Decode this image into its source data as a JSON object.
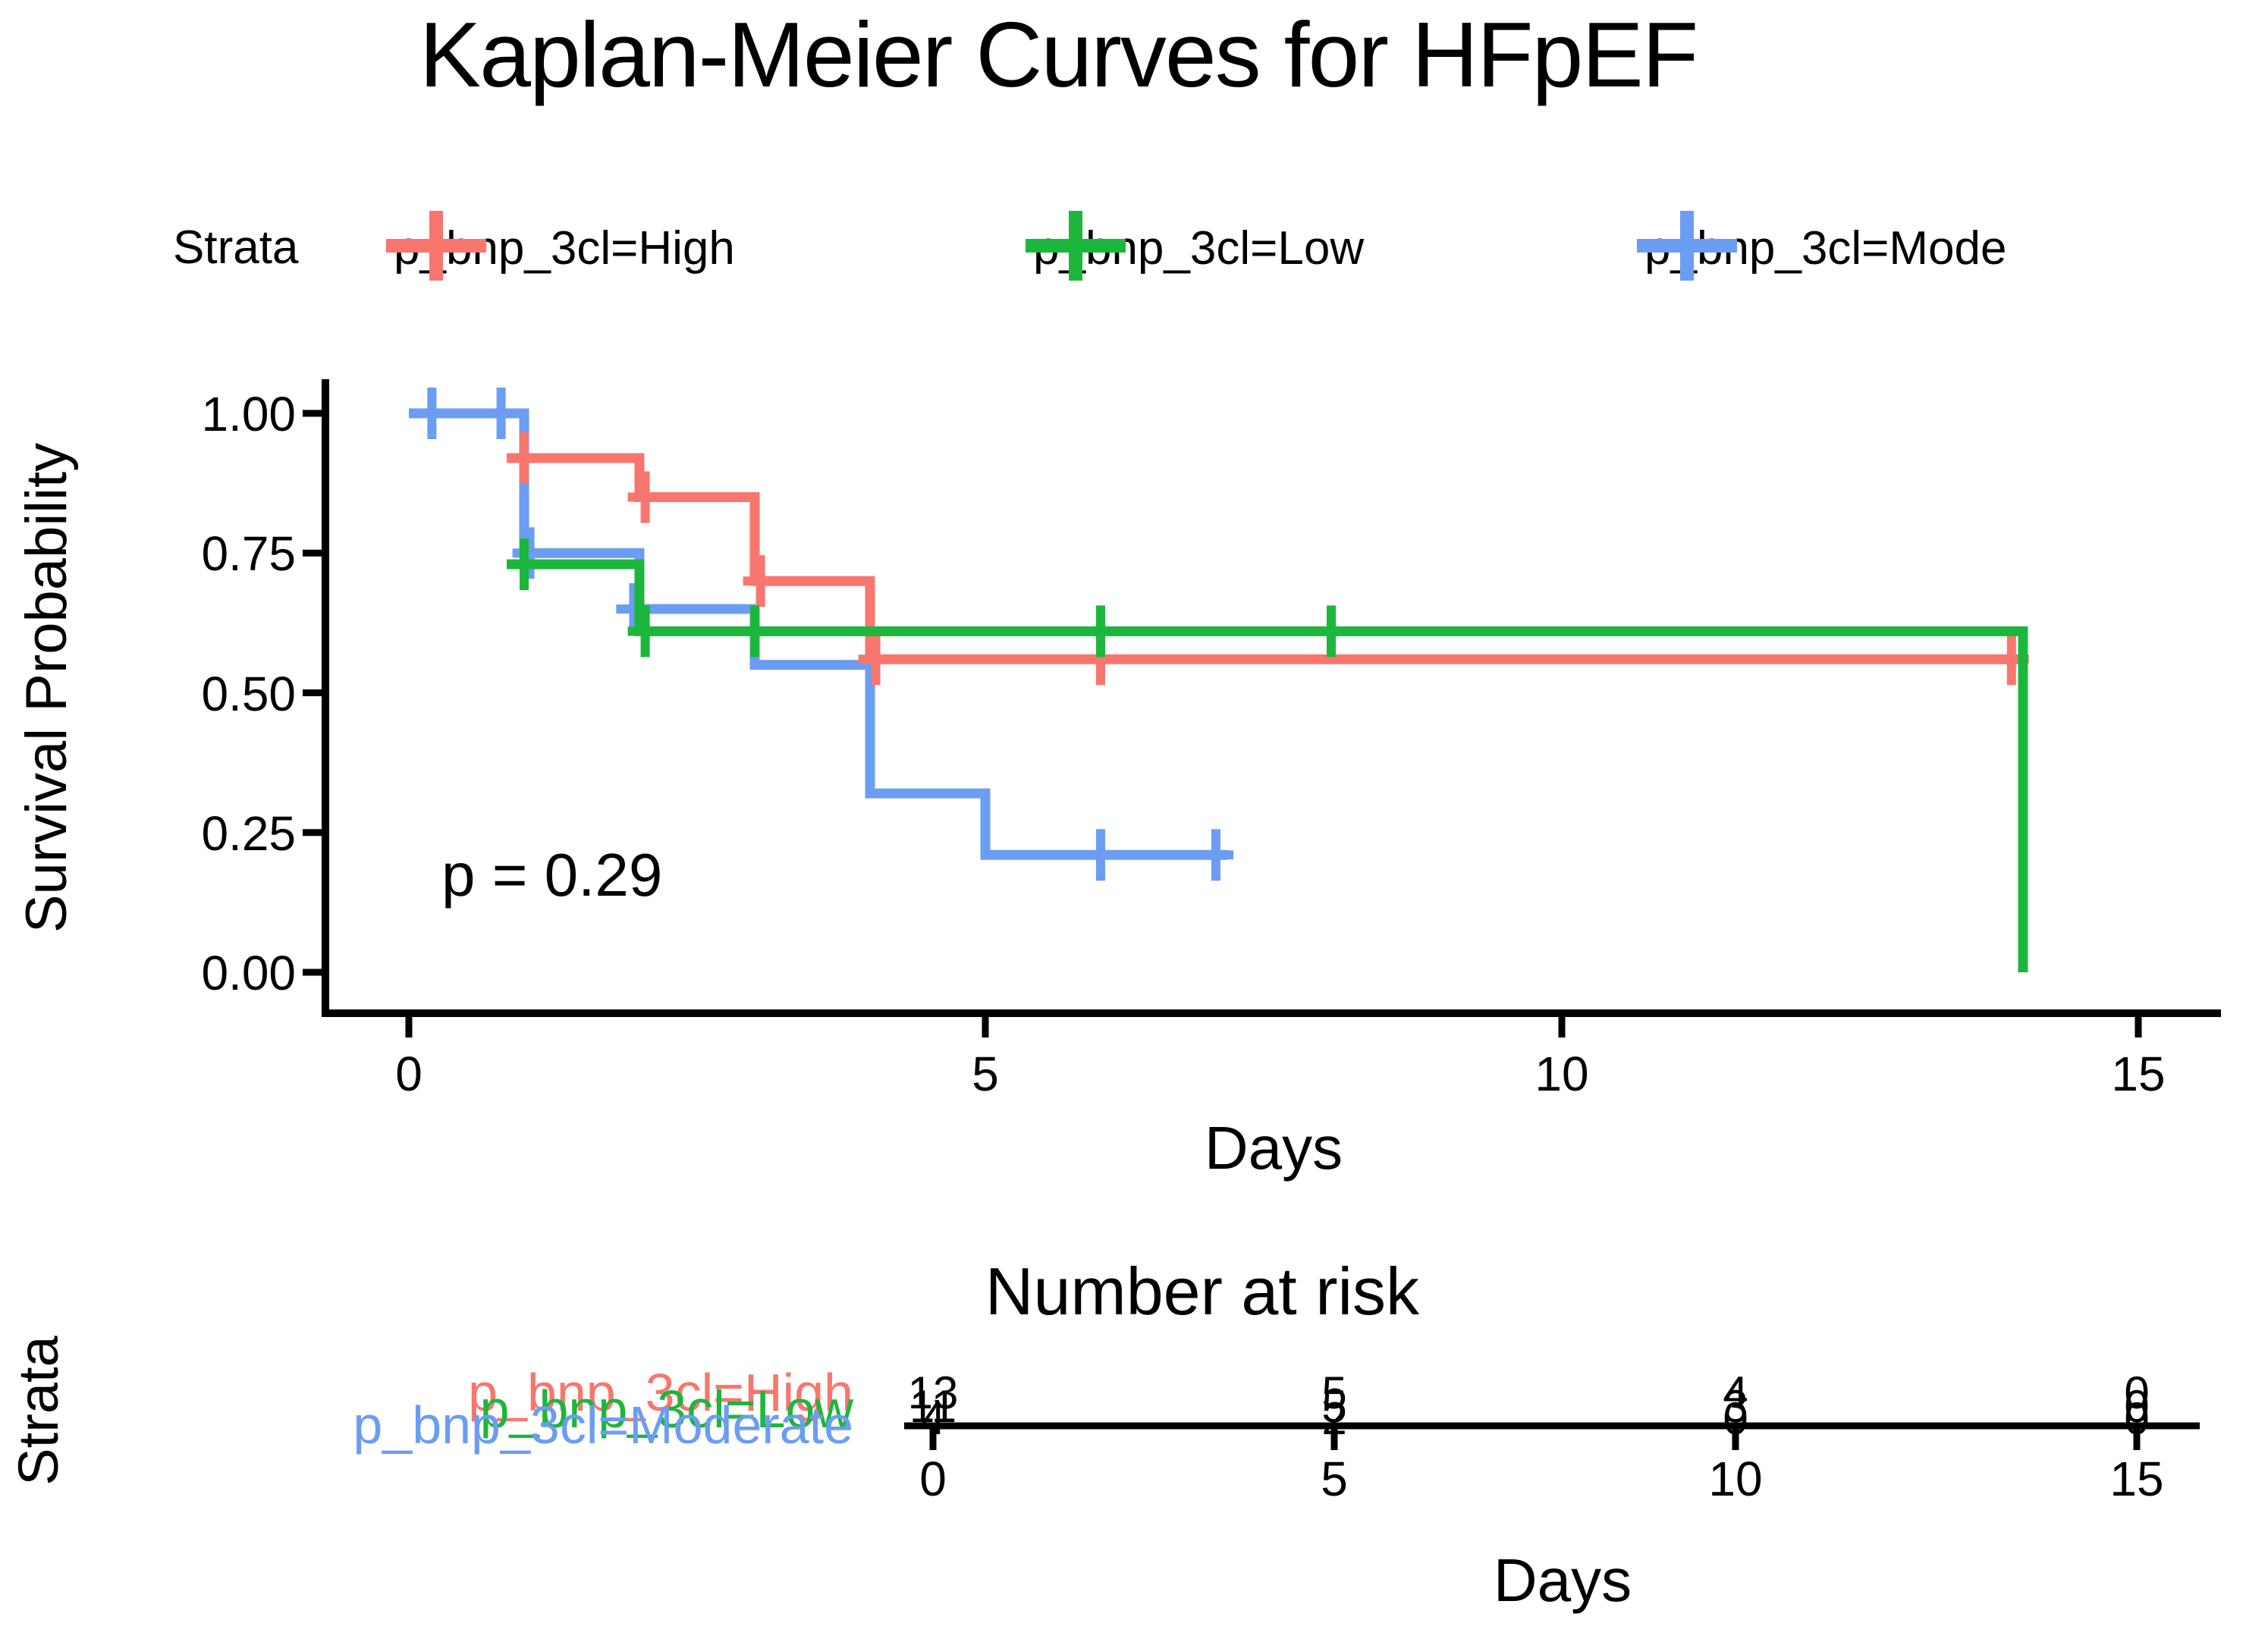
{
  "title": "Kaplan-Meier Curves for HFpEF",
  "pvalue": "p = 0.29",
  "legend": {
    "label": "Strata",
    "items": [
      {
        "label": "p_bnp_3cl=High",
        "color": "#F8766D"
      },
      {
        "label": "p_bnp_3cl=Low",
        "color": "#1CB63C"
      },
      {
        "label": "p_bnp_3cl=Mode",
        "color": "#6B9DF2"
      }
    ]
  },
  "axes": {
    "y_label": "Survival Probability",
    "x_label": "Days",
    "y_ticks": [
      "1.00",
      "0.75",
      "0.50",
      "0.25",
      "0.00"
    ],
    "x_ticks": [
      "0",
      "5",
      "10",
      "15"
    ]
  },
  "risk_table": {
    "title": "Number at risk",
    "axis_label": "Strata",
    "x_label": "Days",
    "x_ticks": [
      "0",
      "5",
      "10",
      "15"
    ],
    "rows": [
      {
        "label": "p_bnp_3cl=High",
        "color": "#F8766D",
        "values": [
          "13",
          "5",
          "4",
          "0"
        ]
      },
      {
        "label": "p_bnp_3cl=Low",
        "color": "#1CB63C",
        "values": [
          "11",
          "5",
          "3",
          "0"
        ]
      },
      {
        "label": "p_bnp_3cl=Moderate",
        "color": "#6B9DF2",
        "values": [
          "4",
          "2",
          "0",
          "0"
        ]
      }
    ]
  },
  "chart_data": {
    "type": "line",
    "subtype": "kaplan-meier-step",
    "title": "Kaplan-Meier Curves for HFpEF",
    "xlabel": "Days",
    "ylabel": "Survival Probability",
    "xlim": [
      0,
      15
    ],
    "ylim": [
      0,
      1
    ],
    "x_ticks": [
      0,
      5,
      10,
      15
    ],
    "y_ticks": [
      1.0,
      0.75,
      0.5,
      0.25,
      0.0
    ],
    "pvalue_annotation": "p = 0.29",
    "legend_position": "top",
    "grid": false,
    "series": [
      {
        "name": "p_bnp_3cl=High",
        "color": "#F8766D",
        "steps": [
          [
            0.85,
            0.92
          ],
          [
            2,
            0.92
          ],
          [
            2,
            0.85
          ],
          [
            3,
            0.85
          ],
          [
            3,
            0.7
          ],
          [
            4,
            0.7
          ],
          [
            4,
            0.56
          ],
          [
            14,
            0.56
          ]
        ],
        "censors": [
          [
            1,
            0.92
          ],
          [
            2.05,
            0.85
          ],
          [
            3.05,
            0.7
          ],
          [
            4.05,
            0.56
          ],
          [
            6,
            0.56
          ],
          [
            13.9,
            0.56
          ]
        ]
      },
      {
        "name": "p_bnp_3cl=Low",
        "color": "#1CB63C",
        "steps": [
          [
            0.85,
            0.73
          ],
          [
            2,
            0.73
          ],
          [
            2,
            0.61
          ],
          [
            14,
            0.61
          ],
          [
            14,
            0.0
          ]
        ],
        "censors": [
          [
            1,
            0.73
          ],
          [
            2.05,
            0.61
          ],
          [
            3,
            0.61
          ],
          [
            6,
            0.61
          ],
          [
            8,
            0.61
          ]
        ]
      },
      {
        "name": "p_bnp_3cl=Moderate",
        "color": "#6B9DF2",
        "steps": [
          [
            0,
            1.0
          ],
          [
            1,
            1.0
          ],
          [
            1,
            0.75
          ],
          [
            2,
            0.75
          ],
          [
            2,
            0.65
          ],
          [
            3,
            0.65
          ],
          [
            3,
            0.55
          ],
          [
            4,
            0.55
          ],
          [
            4,
            0.32
          ],
          [
            5,
            0.32
          ],
          [
            5,
            0.21
          ],
          [
            7.1,
            0.21
          ]
        ],
        "censors": [
          [
            0.2,
            1.0
          ],
          [
            0.8,
            1.0
          ],
          [
            1.05,
            0.75
          ],
          [
            1.95,
            0.65
          ],
          [
            6,
            0.21
          ],
          [
            7,
            0.21
          ]
        ]
      }
    ],
    "number_at_risk": {
      "times": [
        0,
        5,
        10,
        15
      ],
      "High": [
        13,
        5,
        4,
        0
      ],
      "Low": [
        11,
        5,
        3,
        0
      ],
      "Moderate": [
        4,
        2,
        0,
        0
      ]
    }
  }
}
